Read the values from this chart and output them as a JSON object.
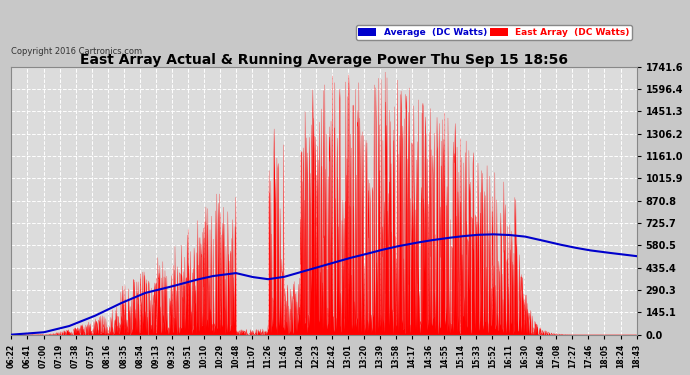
{
  "title": "East Array Actual & Running Average Power Thu Sep 15 18:56",
  "copyright": "Copyright 2016 Cartronics.com",
  "legend_avg": "Average  (DC Watts)",
  "legend_east": "East Array  (DC Watts)",
  "ytick_values": [
    0.0,
    145.1,
    290.3,
    435.4,
    580.5,
    725.7,
    870.8,
    1015.9,
    1161.0,
    1306.2,
    1451.3,
    1596.4,
    1741.6
  ],
  "ymax": 1741.6,
  "bg_color": "#c8c8c8",
  "plot_bg_color": "#dcdcdc",
  "grid_color": "#ffffff",
  "red_color": "#ff0000",
  "blue_color": "#0000cc",
  "title_color": "#000000",
  "x_tick_labels": [
    "06:22",
    "06:41",
    "07:00",
    "07:19",
    "07:38",
    "07:57",
    "08:16",
    "08:35",
    "08:54",
    "09:13",
    "09:32",
    "09:51",
    "10:10",
    "10:29",
    "10:48",
    "11:07",
    "11:26",
    "11:45",
    "12:04",
    "12:23",
    "12:42",
    "13:01",
    "13:20",
    "13:39",
    "13:58",
    "14:17",
    "14:36",
    "14:55",
    "15:14",
    "15:33",
    "15:52",
    "16:11",
    "16:30",
    "16:49",
    "17:08",
    "17:27",
    "17:46",
    "18:05",
    "18:24",
    "18:43"
  ]
}
